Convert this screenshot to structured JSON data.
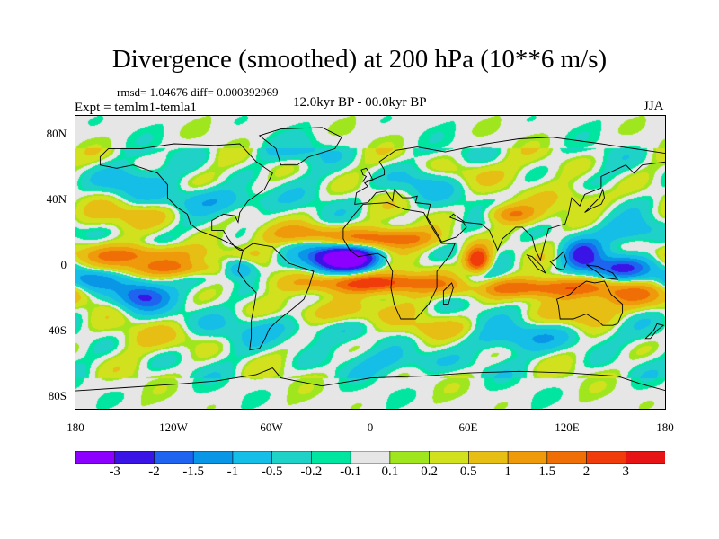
{
  "figure": {
    "title": "Divergence (smoothed) at 200 hPa (10**6 m/s)",
    "stats": "rmsd= 1.04676 diff= 0.000392969",
    "experiment": "Expt = temlm1-temla1",
    "period": "12.0kyr BP - 00.0kyr BP",
    "season": "JJA"
  },
  "axes": {
    "y_ticks": [
      "80N",
      "40N",
      "0",
      "40S",
      "80S"
    ],
    "x_ticks": [
      "180",
      "120W",
      "60W",
      "0",
      "60E",
      "120E",
      "180"
    ]
  },
  "colorbar": {
    "labels": [
      "-3",
      "-2",
      "-1.5",
      "-1",
      "-0.5",
      "-0.2",
      "-0.1",
      "0.1",
      "0.2",
      "0.5",
      "1",
      "1.5",
      "2",
      "3"
    ],
    "colors": [
      "#8b00ff",
      "#3a14e6",
      "#1e64f0",
      "#0a96e6",
      "#14bee6",
      "#1ed2c8",
      "#00e6a0",
      "#e6e6e6",
      "#a0e61e",
      "#d2e11e",
      "#e6be14",
      "#ee9a0a",
      "#f06e06",
      "#f03c0a",
      "#e61414"
    ]
  },
  "map": {
    "projection": "cylindrical-equidistant",
    "lon_range": [
      -180,
      180
    ],
    "lat_range": [
      -90,
      90
    ],
    "background_color": "#e6e6e6",
    "anomalies": [
      {
        "lon": -15,
        "lat": 3,
        "value": -3.5,
        "rlon": 16,
        "rlat": 6
      },
      {
        "lon": -20,
        "lat": 3,
        "value": -1.6,
        "rlon": 24,
        "rlat": 10
      },
      {
        "lon": 128,
        "lat": 5,
        "value": -2.2,
        "rlon": 12,
        "rlat": 10
      },
      {
        "lon": 150,
        "lat": -3,
        "value": -2.0,
        "rlon": 18,
        "rlat": 7
      },
      {
        "lon": -140,
        "lat": -20,
        "value": -2.2,
        "rlon": 16,
        "rlat": 9
      },
      {
        "lon": -170,
        "lat": -10,
        "value": -1.5,
        "rlon": 16,
        "rlat": 7
      },
      {
        "lon": -80,
        "lat": -3,
        "value": -1.5,
        "rlon": 10,
        "rlat": 6
      },
      {
        "lon": 65,
        "lat": -8,
        "value": -1.3,
        "rlon": 10,
        "rlat": 10
      },
      {
        "lon": -90,
        "lat": 38,
        "value": -1.0,
        "rlon": 30,
        "rlat": 8
      },
      {
        "lon": -150,
        "lat": 50,
        "value": -0.9,
        "rlon": 20,
        "rlat": 10
      },
      {
        "lon": 30,
        "lat": 50,
        "value": -0.8,
        "rlon": 20,
        "rlat": 10
      },
      {
        "lon": -50,
        "lat": 70,
        "value": -0.6,
        "rlon": 25,
        "rlat": 8
      },
      {
        "lon": 160,
        "lat": 20,
        "value": -0.9,
        "rlon": 20,
        "rlat": 7
      },
      {
        "lon": 100,
        "lat": -45,
        "value": -0.8,
        "rlon": 40,
        "rlat": 8
      },
      {
        "lon": -60,
        "lat": -40,
        "value": -0.8,
        "rlon": 35,
        "rlat": 10
      },
      {
        "lon": 20,
        "lat": -60,
        "value": -0.7,
        "rlon": 30,
        "rlat": 8
      },
      {
        "lon": 10,
        "lat": 15,
        "value": 2.0,
        "rlon": 30,
        "rlat": 6
      },
      {
        "lon": 65,
        "lat": 1,
        "value": 3.5,
        "rlon": 8,
        "rlat": 9
      },
      {
        "lon": 0,
        "lat": -12,
        "value": 2.5,
        "rlon": 40,
        "rlat": 6
      },
      {
        "lon": 100,
        "lat": -15,
        "value": 2.0,
        "rlon": 50,
        "rlat": 6
      },
      {
        "lon": -140,
        "lat": 5,
        "value": 1.6,
        "rlon": 40,
        "rlat": 6
      },
      {
        "lon": -120,
        "lat": -3,
        "value": 1.5,
        "rlon": 30,
        "rlat": 5
      },
      {
        "lon": -40,
        "lat": 18,
        "value": 1.4,
        "rlon": 25,
        "rlat": 6
      },
      {
        "lon": 160,
        "lat": -20,
        "value": 1.4,
        "rlon": 25,
        "rlat": 8
      },
      {
        "lon": 85,
        "lat": 30,
        "value": 1.5,
        "rlon": 15,
        "rlat": 6
      },
      {
        "lon": -20,
        "lat": -30,
        "value": 1.0,
        "rlon": 30,
        "rlat": 8
      },
      {
        "lon": 130,
        "lat": -30,
        "value": 0.9,
        "rlon": 20,
        "rlat": 8
      },
      {
        "lon": -140,
        "lat": 30,
        "value": 0.7,
        "rlon": 30,
        "rlat": 8
      },
      {
        "lon": 60,
        "lat": 55,
        "value": 0.6,
        "rlon": 25,
        "rlat": 8
      },
      {
        "lon": -120,
        "lat": -45,
        "value": 0.5,
        "rlon": 30,
        "rlat": 8
      },
      {
        "lon": 40,
        "lat": -40,
        "value": 0.6,
        "rlon": 25,
        "rlat": 6
      },
      {
        "lon": 130,
        "lat": 40,
        "value": 0.6,
        "rlon": 20,
        "rlat": 8
      }
    ]
  }
}
